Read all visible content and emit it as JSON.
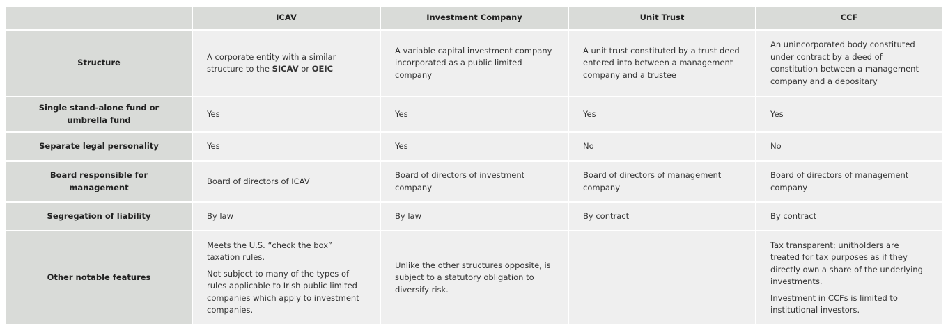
{
  "headers": [
    "",
    "ICAV",
    "Investment Company",
    "Unit Trust",
    "CCF"
  ],
  "rows": [
    {
      "label": "Structure",
      "cells": [
        {
          "parts": [
            "A corporate entity with a similar structure to the ",
            "SICAV",
            " or ",
            "OEIC"
          ]
        },
        {
          "paras": [
            "A variable capital investment company incorporated as a public limited company"
          ]
        },
        {
          "paras": [
            "A unit trust constituted by a trust deed entered into between a management company and a trustee"
          ]
        },
        {
          "paras": [
            "An unincorporated body constituted under contract by a deed of constitution between a management company and a depositary"
          ]
        }
      ]
    },
    {
      "label": "Single stand-alone fund or umbrella fund",
      "cells": [
        {
          "paras": [
            "Yes"
          ]
        },
        {
          "paras": [
            "Yes"
          ]
        },
        {
          "paras": [
            "Yes"
          ]
        },
        {
          "paras": [
            "Yes"
          ]
        }
      ]
    },
    {
      "label": "Separate legal personality",
      "cells": [
        {
          "paras": [
            "Yes"
          ]
        },
        {
          "paras": [
            "Yes"
          ]
        },
        {
          "paras": [
            "No"
          ]
        },
        {
          "paras": [
            "No"
          ]
        }
      ]
    },
    {
      "label": "Board responsible for management",
      "cells": [
        {
          "paras": [
            "Board of directors of ICAV"
          ]
        },
        {
          "paras": [
            "Board of directors of investment company"
          ]
        },
        {
          "paras": [
            "Board of directors of management company"
          ]
        },
        {
          "paras": [
            "Board of directors of management company"
          ]
        }
      ]
    },
    {
      "label": "Segregation of liability",
      "cells": [
        {
          "paras": [
            "By law"
          ]
        },
        {
          "paras": [
            "By law"
          ]
        },
        {
          "paras": [
            "By contract"
          ]
        },
        {
          "paras": [
            "By contract"
          ]
        }
      ]
    },
    {
      "label": "Other notable features",
      "cells": [
        {
          "paras": [
            "Meets the U.S. “check the box” taxation rules.",
            "Not subject to many of the types of rules applicable to Irish public limited companies which apply to investment companies."
          ]
        },
        {
          "paras": [
            "Unlike the other structures opposite, is subject to a statutory obligation to diversify risk."
          ]
        },
        {
          "paras": []
        },
        {
          "paras": [
            "Tax transparent; unitholders are treated for tax purposes as if they directly own a share of the underlying investments.",
            "Investment in CCFs is limited to institutional investors."
          ]
        }
      ]
    }
  ]
}
